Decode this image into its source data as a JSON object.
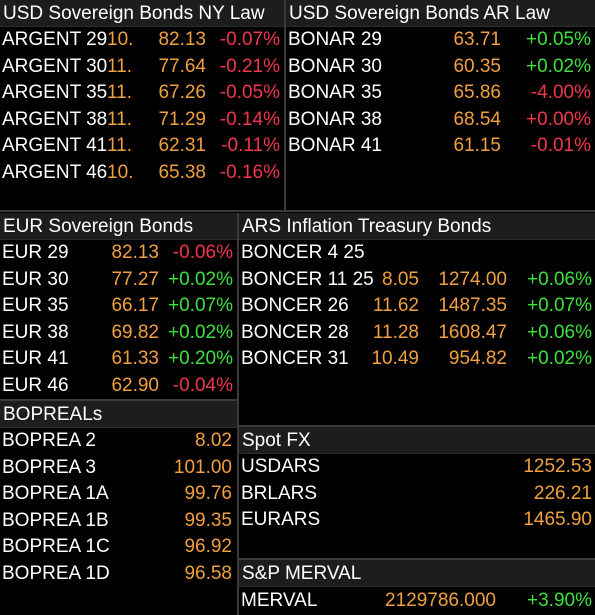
{
  "colors": {
    "positive": "#3ee03e",
    "negative": "#f0364a",
    "price": "#f0a040",
    "header_bg": "#1d1d1d"
  },
  "ny_law": {
    "title": "USD Sovereign Bonds NY Law",
    "rows": [
      {
        "name": "ARGENT 29",
        "yld": "10.",
        "price": "82.13",
        "chg": "-0.07%",
        "dir": "neg"
      },
      {
        "name": "ARGENT 30",
        "yld": "11.",
        "price": "77.64",
        "chg": "-0.21%",
        "dir": "neg"
      },
      {
        "name": "ARGENT 35",
        "yld": "11.",
        "price": "67.26",
        "chg": "-0.05%",
        "dir": "neg"
      },
      {
        "name": "ARGENT 38",
        "yld": "11.",
        "price": "71.29",
        "chg": "-0.14%",
        "dir": "neg"
      },
      {
        "name": "ARGENT 41",
        "yld": "11.",
        "price": "62.31",
        "chg": "-0.11%",
        "dir": "neg"
      },
      {
        "name": "ARGENT 46",
        "yld": "10.",
        "price": "65.38",
        "chg": "-0.16%",
        "dir": "neg"
      }
    ]
  },
  "ar_law": {
    "title": "USD Sovereign Bonds AR Law",
    "rows": [
      {
        "name": "BONAR 29",
        "price": "63.71",
        "chg": "+0.05%",
        "dir": "pos"
      },
      {
        "name": "BONAR 30",
        "price": "60.35",
        "chg": "+0.02%",
        "dir": "pos"
      },
      {
        "name": "BONAR 35",
        "price": "65.86",
        "chg": "-4.00%",
        "dir": "neg"
      },
      {
        "name": "BONAR 38",
        "price": "68.54",
        "chg": "+0.00%",
        "dir": "neg"
      },
      {
        "name": "BONAR 41",
        "price": "61.15",
        "chg": "-0.01%",
        "dir": "neg"
      }
    ]
  },
  "eur": {
    "title": "EUR Sovereign Bonds",
    "rows": [
      {
        "name": "EUR 29",
        "price": "82.13",
        "chg": "-0.06%",
        "dir": "neg"
      },
      {
        "name": "EUR 30",
        "price": "77.27",
        "chg": "+0.02%",
        "dir": "pos"
      },
      {
        "name": "EUR 35",
        "price": "66.17",
        "chg": "+0.07%",
        "dir": "pos"
      },
      {
        "name": "EUR 38",
        "price": "69.82",
        "chg": "+0.02%",
        "dir": "pos"
      },
      {
        "name": "EUR 41",
        "price": "61.33",
        "chg": "+0.20%",
        "dir": "pos"
      },
      {
        "name": "EUR 46",
        "price": "62.90",
        "chg": "-0.04%",
        "dir": "neg"
      }
    ]
  },
  "ars_inflation": {
    "title": "ARS Inflation Treasury Bonds",
    "rows": [
      {
        "name": "BONCER 4 25",
        "yld": "",
        "price": "",
        "chg": "",
        "dir": "pos"
      },
      {
        "name": "BONCER 11 25",
        "yld": "8.05",
        "price": "1274.00",
        "chg": "+0.06%",
        "dir": "pos"
      },
      {
        "name": "BONCER 26",
        "yld": "11.62",
        "price": "1487.35",
        "chg": "+0.07%",
        "dir": "pos"
      },
      {
        "name": "BONCER 28",
        "yld": "11.28",
        "price": "1608.47",
        "chg": "+0.06%",
        "dir": "pos"
      },
      {
        "name": "BONCER 31",
        "yld": "10.49",
        "price": "954.82",
        "chg": "+0.02%",
        "dir": "pos"
      }
    ]
  },
  "bopreals": {
    "title": "BOPREALs",
    "rows": [
      {
        "name": "BOPREA 2",
        "price": "8.02"
      },
      {
        "name": "BOPREA 3",
        "price": "101.00"
      },
      {
        "name": "BOPREA 1A",
        "price": "99.76"
      },
      {
        "name": "BOPREA 1B",
        "price": "99.35"
      },
      {
        "name": "BOPREA 1C",
        "price": "96.92"
      },
      {
        "name": "BOPREA 1D",
        "price": "96.58"
      }
    ]
  },
  "spot_fx": {
    "title": "Spot FX",
    "rows": [
      {
        "name": "USDARS",
        "price": "1252.53"
      },
      {
        "name": "BRLARS",
        "price": "226.21"
      },
      {
        "name": "EURARS",
        "price": "1465.90"
      }
    ]
  },
  "merval": {
    "title": "S&P MERVAL",
    "name": "MERVAL",
    "price": "2129786.000",
    "chg": "+3.90%",
    "dir": "pos"
  }
}
